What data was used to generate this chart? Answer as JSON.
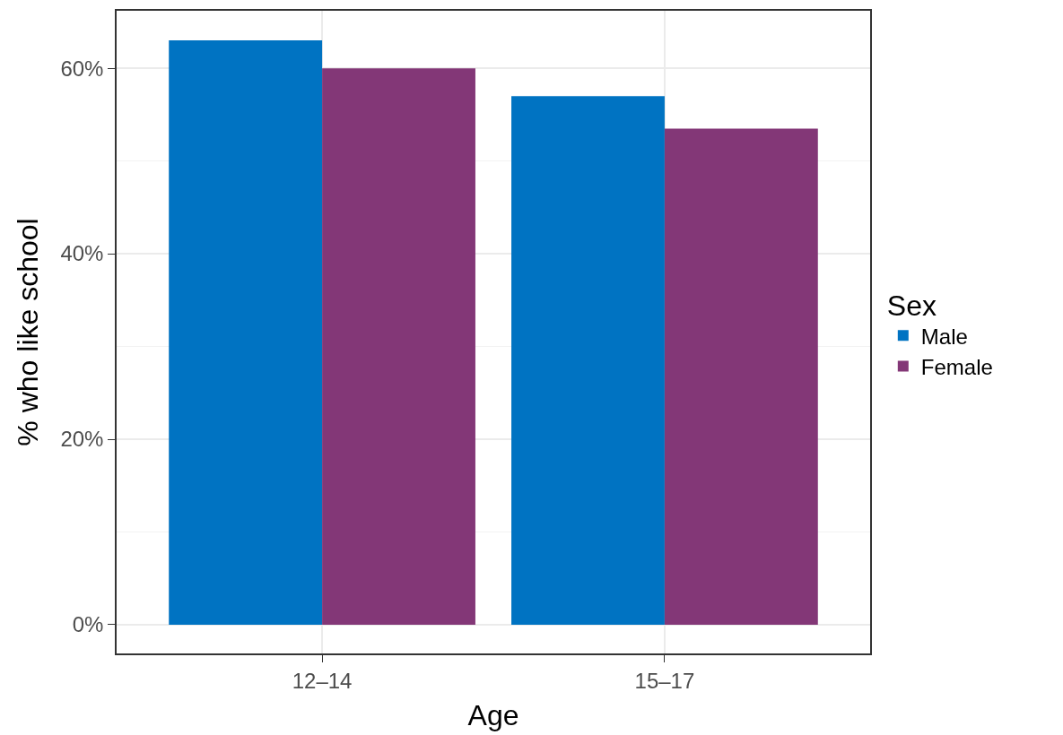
{
  "chart_data": {
    "type": "bar",
    "xlabel": "Age",
    "ylabel": "% who like school",
    "legend_title": "Sex",
    "categories": [
      "12–14",
      "15–17"
    ],
    "series": [
      {
        "name": "Male",
        "color": "#0073c2",
        "values": [
          63,
          57
        ]
      },
      {
        "name": "Female",
        "color": "#833777",
        "values": [
          60,
          53.5
        ]
      }
    ],
    "ylim": [
      -3.1,
      66.2
    ],
    "yticks": [
      {
        "value": 0,
        "label": "0%"
      },
      {
        "value": 20,
        "label": "20%"
      },
      {
        "value": 40,
        "label": "40%"
      },
      {
        "value": 60,
        "label": "60%"
      }
    ],
    "grid": true,
    "legend": "right"
  }
}
